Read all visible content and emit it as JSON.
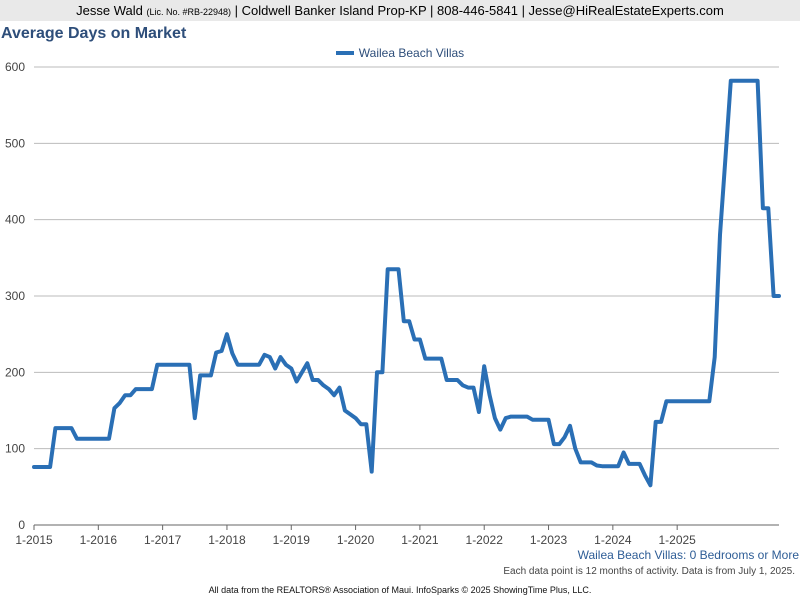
{
  "header": {
    "name": "Jesse Wald",
    "license": "(Lic. No. #RB-22948)",
    "details": "| Coldwell Banker Island Prop-KP | 808-446-5841 | Jesse@HiRealEstateExperts.com"
  },
  "footnotes": {
    "series_label": "Wailea Beach Villas: 0 Bedrooms or More",
    "activity_note": "Each data point is 12 months of activity. Data is from July 1, 2025.",
    "source": "All data from the REALTORS® Association of Maui. InfoSparks © 2025 ShowingTime Plus, LLC."
  },
  "colors": {
    "line": "#2a6fb5",
    "title": "#2e4e7a",
    "grid": "#bbbbbb",
    "header_bg": "#e9e9e9"
  },
  "chart_data": {
    "type": "line",
    "title": "Average Days on Market",
    "legend_position": "top-center",
    "grid": true,
    "ylim": [
      0,
      600
    ],
    "y_ticks": [
      0,
      100,
      200,
      300,
      400,
      500,
      600
    ],
    "x_tick_labels": [
      "1-2015",
      "1-2016",
      "1-2017",
      "1-2018",
      "1-2019",
      "1-2020",
      "1-2021",
      "1-2022",
      "1-2023",
      "1-2024",
      "1-2025"
    ],
    "x_start": "1-2015",
    "series": [
      {
        "name": "Wailea Beach Villas",
        "values": [
          76,
          76,
          76,
          76,
          127,
          127,
          127,
          127,
          113,
          113,
          113,
          113,
          113,
          113,
          113,
          153,
          160,
          170,
          170,
          178,
          178,
          178,
          178,
          210,
          210,
          210,
          210,
          210,
          210,
          210,
          140,
          196,
          196,
          196,
          226,
          228,
          250,
          225,
          210,
          210,
          210,
          210,
          210,
          223,
          220,
          205,
          220,
          210,
          205,
          188,
          200,
          212,
          190,
          190,
          183,
          178,
          170,
          180,
          150,
          145,
          140,
          132,
          132,
          70,
          200,
          200,
          335,
          335,
          335,
          267,
          267,
          243,
          243,
          218,
          218,
          218,
          218,
          190,
          190,
          190,
          183,
          180,
          180,
          148,
          208,
          170,
          140,
          125,
          140,
          142,
          142,
          142,
          142,
          138,
          138,
          138,
          138,
          106,
          106,
          115,
          130,
          100,
          82,
          82,
          82,
          78,
          77,
          77,
          77,
          77,
          95,
          80,
          80,
          80,
          65,
          52,
          135,
          135,
          162,
          162,
          162,
          162,
          162,
          162,
          162,
          162,
          162,
          220,
          380,
          480,
          582,
          582,
          582,
          582,
          582,
          582,
          415,
          415,
          300,
          300
        ]
      }
    ]
  }
}
